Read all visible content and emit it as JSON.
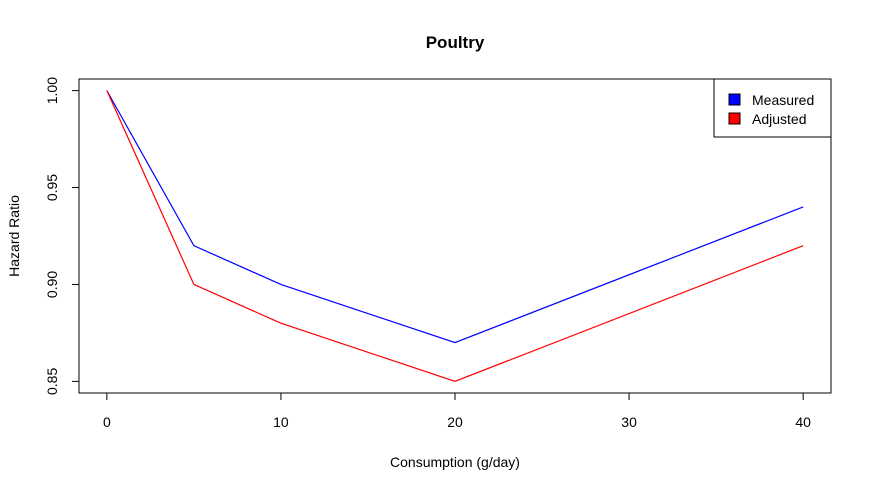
{
  "chart_data": {
    "type": "line",
    "title": "Poultry",
    "xlabel": "Consumption (g/day)",
    "ylabel": "Hazard Ratio",
    "x": [
      0,
      5,
      10,
      20,
      40
    ],
    "xlim": [
      -1.6,
      41.6
    ],
    "ylim": [
      0.844,
      1.006
    ],
    "xticks": [
      0,
      10,
      20,
      30,
      40
    ],
    "yticks": [
      0.85,
      0.9,
      0.95,
      1.0
    ],
    "xtick_labels": [
      "0",
      "10",
      "20",
      "30",
      "40"
    ],
    "ytick_labels": [
      "0.85",
      "0.90",
      "0.95",
      "1.00"
    ],
    "series": [
      {
        "name": "Measured",
        "color": "#0000ff",
        "values": [
          1.0,
          0.92,
          0.9,
          0.87,
          0.94
        ]
      },
      {
        "name": "Adjusted",
        "color": "#ff0000",
        "values": [
          1.0,
          0.9,
          0.88,
          0.85,
          0.92
        ]
      }
    ],
    "legend": "top-right",
    "grid": false
  }
}
